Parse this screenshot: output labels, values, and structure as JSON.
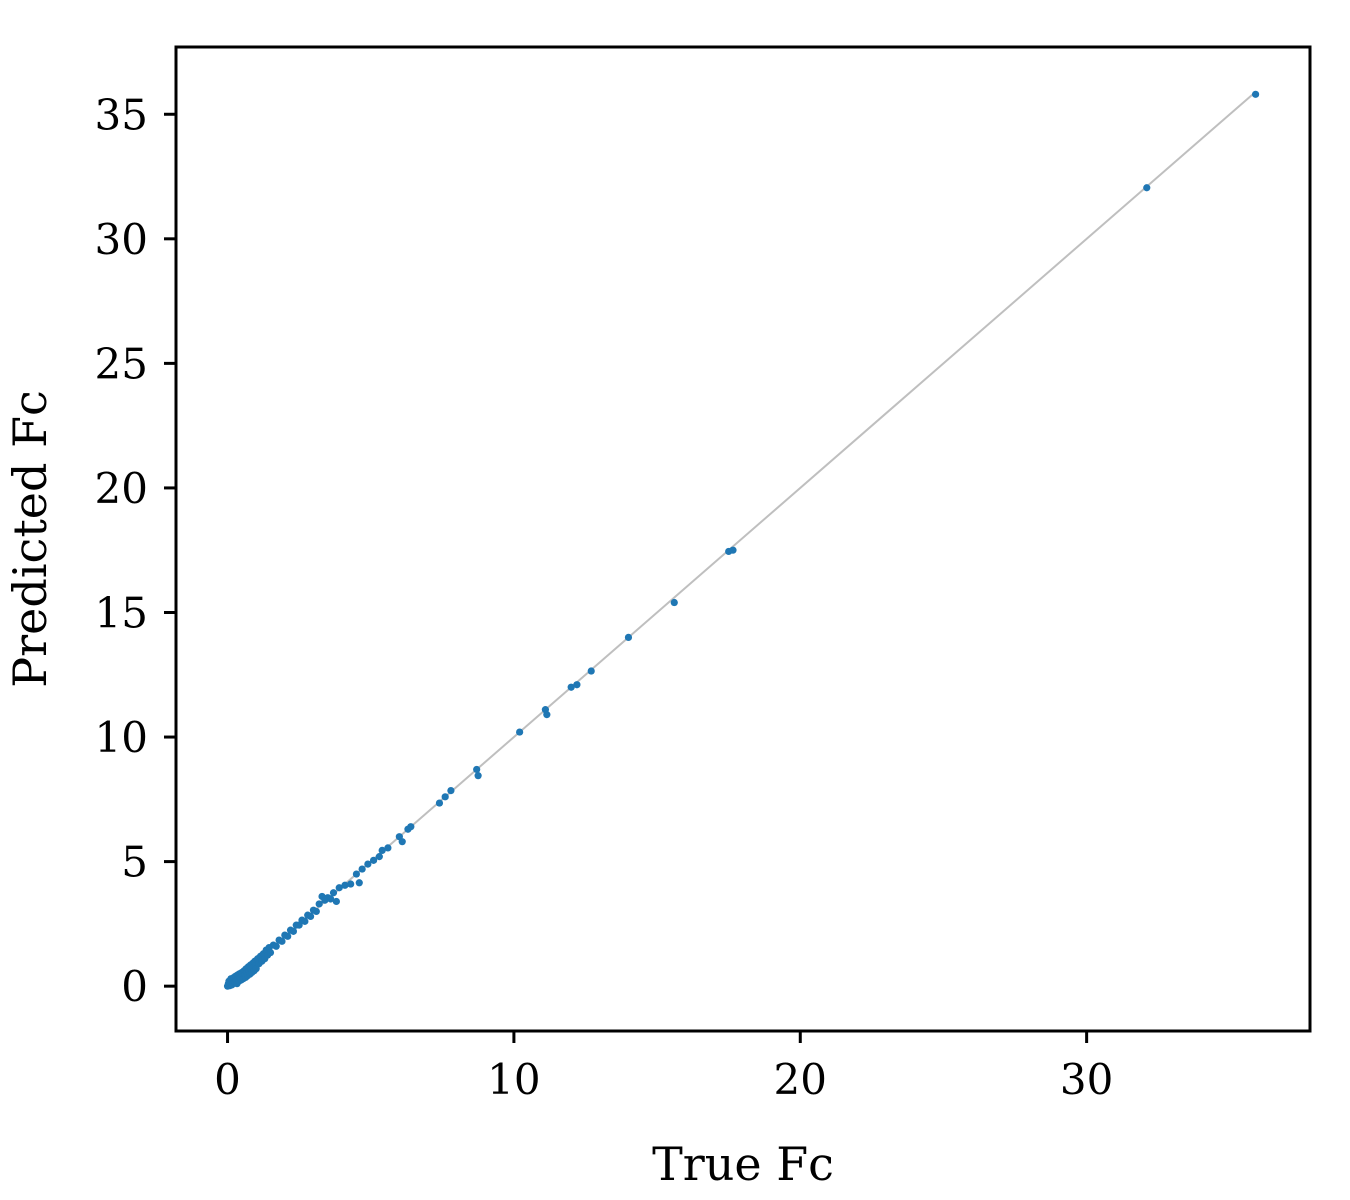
{
  "chart_data": {
    "type": "scatter",
    "title": "",
    "xlabel": "True Fc",
    "ylabel": "Predicted Fc",
    "xlim": [
      -1.8,
      37.8
    ],
    "ylim": [
      -1.8,
      37.7
    ],
    "x_ticks": [
      0,
      10,
      20,
      30
    ],
    "y_ticks": [
      0,
      5,
      10,
      15,
      20,
      25,
      30,
      35
    ],
    "grid": false,
    "legend": "none",
    "point_color": "#1f77b4",
    "reference_line": {
      "from": [
        0,
        0
      ],
      "to": [
        35.9,
        35.9
      ],
      "color": "#bfbfbf"
    },
    "series": [
      {
        "points": [
          [
            0.0,
            0.0
          ],
          [
            0.03,
            0.1
          ],
          [
            0.05,
            0.2
          ],
          [
            0.08,
            0.02
          ],
          [
            0.1,
            0.15
          ],
          [
            0.12,
            0.3
          ],
          [
            0.15,
            0.05
          ],
          [
            0.18,
            0.25
          ],
          [
            0.2,
            0.12
          ],
          [
            0.22,
            0.35
          ],
          [
            0.25,
            0.18
          ],
          [
            0.28,
            0.4
          ],
          [
            0.3,
            0.22
          ],
          [
            0.33,
            0.1
          ],
          [
            0.35,
            0.45
          ],
          [
            0.38,
            0.28
          ],
          [
            0.4,
            0.2
          ],
          [
            0.42,
            0.5
          ],
          [
            0.45,
            0.32
          ],
          [
            0.48,
            0.25
          ],
          [
            0.5,
            0.55
          ],
          [
            0.53,
            0.38
          ],
          [
            0.55,
            0.3
          ],
          [
            0.58,
            0.62
          ],
          [
            0.6,
            0.45
          ],
          [
            0.63,
            0.35
          ],
          [
            0.65,
            0.7
          ],
          [
            0.68,
            0.52
          ],
          [
            0.7,
            0.42
          ],
          [
            0.73,
            0.78
          ],
          [
            0.75,
            0.6
          ],
          [
            0.78,
            0.48
          ],
          [
            0.8,
            0.85
          ],
          [
            0.83,
            0.68
          ],
          [
            0.85,
            0.55
          ],
          [
            0.88,
            0.92
          ],
          [
            0.9,
            0.75
          ],
          [
            0.93,
            0.62
          ],
          [
            0.95,
            1.0
          ],
          [
            0.98,
            0.82
          ],
          [
            1.0,
            0.7
          ],
          [
            1.05,
            1.1
          ],
          [
            1.1,
            0.9
          ],
          [
            1.15,
            1.2
          ],
          [
            1.2,
            1.0
          ],
          [
            1.25,
            1.3
          ],
          [
            1.3,
            1.1
          ],
          [
            1.35,
            1.45
          ],
          [
            1.4,
            1.25
          ],
          [
            1.45,
            1.55
          ],
          [
            1.5,
            1.35
          ],
          [
            1.6,
            1.65
          ],
          [
            1.7,
            1.6
          ],
          [
            1.8,
            1.85
          ],
          [
            1.9,
            1.8
          ],
          [
            2.0,
            2.05
          ],
          [
            2.1,
            2.0
          ],
          [
            2.2,
            2.25
          ],
          [
            2.3,
            2.2
          ],
          [
            2.4,
            2.45
          ],
          [
            2.5,
            2.45
          ],
          [
            2.6,
            2.65
          ],
          [
            2.7,
            2.6
          ],
          [
            2.8,
            2.85
          ],
          [
            2.9,
            2.8
          ],
          [
            3.0,
            3.05
          ],
          [
            3.1,
            3.0
          ],
          [
            3.2,
            3.3
          ],
          [
            3.3,
            3.6
          ],
          [
            3.4,
            3.45
          ],
          [
            3.5,
            3.55
          ],
          [
            3.6,
            3.5
          ],
          [
            3.7,
            3.75
          ],
          [
            3.8,
            3.4
          ],
          [
            3.9,
            3.95
          ],
          [
            4.1,
            4.05
          ],
          [
            4.3,
            4.1
          ],
          [
            4.5,
            4.5
          ],
          [
            4.6,
            4.15
          ],
          [
            4.7,
            4.7
          ],
          [
            4.9,
            4.9
          ],
          [
            5.1,
            5.05
          ],
          [
            5.3,
            5.2
          ],
          [
            5.4,
            5.45
          ],
          [
            5.6,
            5.55
          ],
          [
            6.0,
            6.0
          ],
          [
            6.1,
            5.8
          ],
          [
            6.3,
            6.3
          ],
          [
            6.4,
            6.4
          ],
          [
            7.4,
            7.35
          ],
          [
            7.6,
            7.6
          ],
          [
            7.8,
            7.85
          ],
          [
            8.7,
            8.7
          ],
          [
            8.75,
            8.45
          ],
          [
            10.2,
            10.2
          ],
          [
            11.1,
            11.1
          ],
          [
            11.15,
            10.9
          ],
          [
            12.0,
            12.0
          ],
          [
            12.2,
            12.1
          ],
          [
            12.7,
            12.65
          ],
          [
            14.0,
            14.0
          ],
          [
            15.6,
            15.4
          ],
          [
            17.5,
            17.45
          ],
          [
            17.65,
            17.5
          ],
          [
            32.1,
            32.05
          ],
          [
            35.9,
            35.8
          ]
        ]
      }
    ]
  }
}
